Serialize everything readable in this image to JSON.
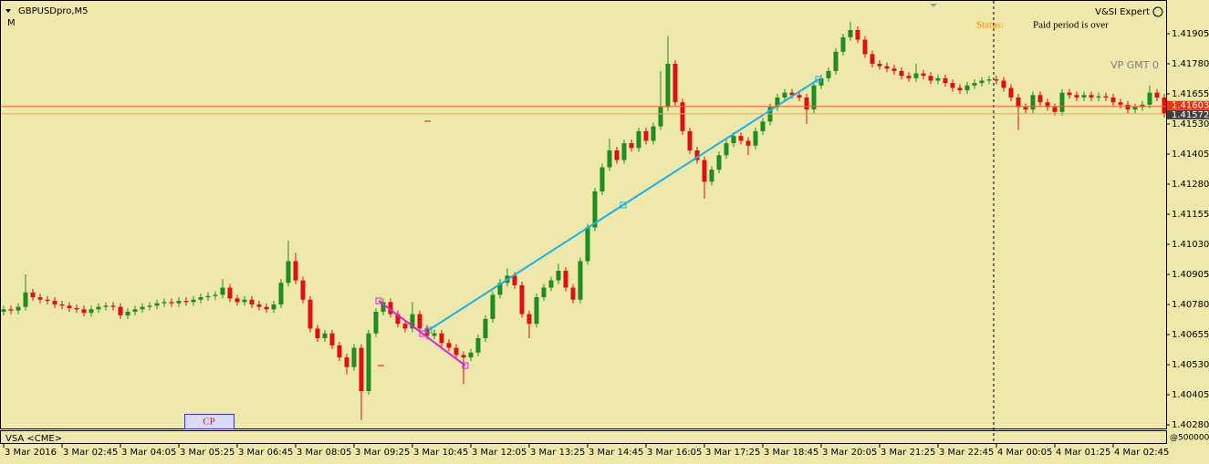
{
  "chart_data": {
    "type": "candlestick",
    "title": "GBPUSDpro,M5",
    "subtitle": "M",
    "expert_name": "V&SI Expert",
    "status_label": "Status:",
    "status_text": "Paid period is over",
    "annotation": "VP GMT 0",
    "indicator": "VSA <CME>",
    "indicator_scale": "@500000",
    "button": "CP",
    "up_color": "#1e8c1e",
    "down_color": "#e01010",
    "ask": 1.41603,
    "bid": 1.41572,
    "ylim": [
      1.40265,
      1.42045
    ],
    "yticks": [
      1.41905,
      {
        "value": 1.4178,
        "label": "1.41780"
      },
      1.41655,
      {
        "value": 1.4153,
        "label": "1.41530"
      },
      1.41405,
      {
        "value": 1.4128,
        "label": "1.41280"
      },
      1.41155,
      {
        "value": 1.4103,
        "label": "1.41030"
      },
      1.40905,
      {
        "value": 1.4078,
        "label": "1.40780"
      },
      1.40655,
      {
        "value": 1.4053,
        "label": "1.40530"
      },
      1.40405,
      {
        "value": 1.4028,
        "label": "1.40280"
      }
    ],
    "x_labels": [
      "3 Mar 2016",
      "3 Mar 02:45",
      "3 Mar 04:05",
      "3 Mar 05:25",
      "3 Mar 06:45",
      "3 Mar 08:05",
      "3 Mar 09:25",
      "3 Mar 10:45",
      "3 Mar 12:05",
      "3 Mar 13:25",
      "3 Mar 14:45",
      "3 Mar 16:05",
      "3 Mar 17:25",
      "3 Mar 18:45",
      "3 Mar 20:05",
      "3 Mar 21:25",
      "3 Mar 22:45",
      "4 Mar 00:05",
      "4 Mar 01:25",
      "4 Mar 02:45"
    ],
    "open": [
      1.4075,
      1.4076,
      1.40755,
      1.4077,
      1.4083,
      1.4081,
      1.408,
      1.40795,
      1.4078,
      1.40775,
      1.40765,
      1.4076,
      1.40745,
      1.4076,
      1.4077,
      1.40775,
      1.4077,
      1.40735,
      1.4075,
      1.4076,
      1.4077,
      1.40775,
      1.40785,
      1.4079,
      1.40785,
      1.40795,
      1.4079,
      1.408,
      1.4081,
      1.40815,
      1.4082,
      1.4085,
      1.40805,
      1.4079,
      1.408,
      1.4078,
      1.4077,
      1.4076,
      1.4078,
      1.4087,
      1.4096,
      1.4088,
      1.408,
      1.4068,
      1.4064,
      1.4066,
      1.4061,
      1.4056,
      1.4052,
      1.406,
      1.4042,
      1.4066,
      1.4075,
      1.4079,
      1.4074,
      1.407,
      1.4068,
      1.4074,
      1.4068,
      1.4065,
      1.4066,
      1.4062,
      1.406,
      1.4057,
      1.4056,
      1.4058,
      1.4064,
      1.4072,
      1.4082,
      1.4087,
      1.409,
      1.4086,
      1.4074,
      1.407,
      1.4081,
      1.4085,
      1.4088,
      1.4092,
      1.4085,
      1.408,
      1.4096,
      1.411,
      1.4125,
      1.4135,
      1.4142,
      1.4138,
      1.4145,
      1.4143,
      1.415,
      1.4146,
      1.4152,
      1.416,
      1.4178,
      1.4162,
      1.415,
      1.4142,
      1.4138,
      1.4129,
      1.4134,
      1.414,
      1.4145,
      1.4148,
      1.4146,
      1.4144,
      1.415,
      1.4154,
      1.416,
      1.4164,
      1.4166,
      1.4165,
      1.4164,
      1.4159,
      1.4169,
      1.4172,
      1.4175,
      1.4183,
      1.4189,
      1.4192,
      1.4188,
      1.4182,
      1.4178,
      1.4177,
      1.4176,
      1.4175,
      1.4173,
      1.4172,
      1.4174,
      1.4173,
      1.4171,
      1.4172,
      1.417,
      1.4168,
      1.4167,
      1.4169,
      1.417,
      1.4171,
      1.41715,
      1.4171,
      1.4168,
      1.4164,
      1.416,
      1.4159,
      1.4165,
      1.4162,
      1.416,
      1.4158,
      1.4166,
      1.4165,
      1.4164,
      1.4165,
      1.4164,
      1.41645,
      1.4164,
      1.4162,
      1.4161,
      1.4159,
      1.416,
      1.4161,
      1.4166,
      1.4164
    ],
    "high": [
      1.40775,
      1.40775,
      1.40785,
      1.40905,
      1.40845,
      1.40825,
      1.40815,
      1.4081,
      1.40795,
      1.4079,
      1.4078,
      1.40775,
      1.40775,
      1.40785,
      1.4079,
      1.4079,
      1.40785,
      1.40765,
      1.40775,
      1.40785,
      1.4079,
      1.408,
      1.40805,
      1.40805,
      1.4081,
      1.4081,
      1.40815,
      1.40825,
      1.4083,
      1.40835,
      1.40885,
      1.40865,
      1.4082,
      1.40815,
      1.40815,
      1.40795,
      1.40785,
      1.40795,
      1.40885,
      1.41045,
      1.40995,
      1.40895,
      1.40815,
      1.40695,
      1.40675,
      1.40675,
      1.40625,
      1.40575,
      1.40615,
      1.40615,
      1.40675,
      1.40765,
      1.40805,
      1.40805,
      1.40755,
      1.40715,
      1.4079,
      1.40755,
      1.40695,
      1.40675,
      1.40675,
      1.40635,
      1.40615,
      1.40585,
      1.40595,
      1.40655,
      1.40735,
      1.40835,
      1.40885,
      1.4093,
      1.40915,
      1.40875,
      1.40755,
      1.40825,
      1.40865,
      1.40895,
      1.4095,
      1.40935,
      1.40865,
      1.40975,
      1.41115,
      1.41265,
      1.41365,
      1.4147,
      1.41435,
      1.41465,
      1.41465,
      1.41515,
      1.41515,
      1.41535,
      1.4175,
      1.41895,
      1.41795,
      1.41635,
      1.41515,
      1.41435,
      1.41395,
      1.41355,
      1.41415,
      1.41465,
      1.41495,
      1.41495,
      1.41475,
      1.41515,
      1.41555,
      1.41615,
      1.41655,
      1.41675,
      1.41675,
      1.41665,
      1.41655,
      1.41705,
      1.41735,
      1.41765,
      1.41845,
      1.41905,
      1.41955,
      1.41935,
      1.41895,
      1.41835,
      1.41795,
      1.41785,
      1.41775,
      1.41765,
      1.41745,
      1.4178,
      1.41755,
      1.41745,
      1.41735,
      1.41735,
      1.41715,
      1.41695,
      1.41705,
      1.41715,
      1.41725,
      1.4173,
      1.4173,
      1.41725,
      1.41695,
      1.41655,
      1.41615,
      1.41665,
      1.41665,
      1.41635,
      1.41615,
      1.41675,
      1.41675,
      1.41665,
      1.41665,
      1.41665,
      1.4166,
      1.4166,
      1.41655,
      1.41635,
      1.41625,
      1.41615,
      1.41625,
      1.4169,
      1.41675,
      1.41655
    ],
    "low": [
      1.40735,
      1.4074,
      1.4074,
      1.40755,
      1.40795,
      1.40785,
      1.4078,
      1.40765,
      1.4076,
      1.4075,
      1.40745,
      1.4073,
      1.4073,
      1.40745,
      1.40755,
      1.40755,
      1.4072,
      1.4072,
      1.40735,
      1.40745,
      1.40755,
      1.4076,
      1.4077,
      1.4077,
      1.4077,
      1.40775,
      1.40775,
      1.40785,
      1.40795,
      1.408,
      1.40805,
      1.4079,
      1.40775,
      1.40775,
      1.40765,
      1.40755,
      1.40745,
      1.40745,
      1.40765,
      1.40855,
      1.40865,
      1.40785,
      1.40665,
      1.40625,
      1.40625,
      1.40595,
      1.40545,
      1.4049,
      1.40505,
      1.403,
      1.40405,
      1.40645,
      1.40735,
      1.40725,
      1.40685,
      1.40665,
      1.40665,
      1.40665,
      1.40635,
      1.40635,
      1.40605,
      1.40585,
      1.40555,
      1.4045,
      1.40545,
      1.40565,
      1.40625,
      1.40705,
      1.40805,
      1.40855,
      1.40845,
      1.40725,
      1.4064,
      1.40685,
      1.40795,
      1.40835,
      1.40865,
      1.40835,
      1.40785,
      1.40785,
      1.40945,
      1.41085,
      1.41235,
      1.41335,
      1.41365,
      1.41365,
      1.41415,
      1.41415,
      1.41445,
      1.41445,
      1.41505,
      1.41585,
      1.41605,
      1.41485,
      1.41405,
      1.41365,
      1.4122,
      1.41275,
      1.41325,
      1.41385,
      1.41435,
      1.41445,
      1.414,
      1.41425,
      1.41485,
      1.41525,
      1.41585,
      1.41625,
      1.41635,
      1.41625,
      1.4153,
      1.41575,
      1.41675,
      1.41705,
      1.41735,
      1.41815,
      1.41875,
      1.41865,
      1.41805,
      1.41765,
      1.41755,
      1.41745,
      1.41735,
      1.41715,
      1.41705,
      1.41705,
      1.41715,
      1.41695,
      1.41695,
      1.41685,
      1.41665,
      1.41655,
      1.41655,
      1.41675,
      1.41685,
      1.41695,
      1.41695,
      1.41665,
      1.41625,
      1.41505,
      1.41575,
      1.41575,
      1.41605,
      1.41585,
      1.41565,
      1.41565,
      1.41635,
      1.41625,
      1.41625,
      1.41625,
      1.41625,
      1.41625,
      1.41605,
      1.41595,
      1.41575,
      1.41575,
      1.41585,
      1.41595,
      1.41625,
      1.41557
    ],
    "close": [
      1.4076,
      1.40755,
      1.4077,
      1.4083,
      1.4081,
      1.408,
      1.40795,
      1.4078,
      1.40775,
      1.40765,
      1.4076,
      1.40745,
      1.4076,
      1.4077,
      1.40775,
      1.4077,
      1.40735,
      1.4075,
      1.4076,
      1.4077,
      1.40775,
      1.40785,
      1.4079,
      1.40785,
      1.40795,
      1.4079,
      1.408,
      1.4081,
      1.40815,
      1.4082,
      1.4085,
      1.40805,
      1.4079,
      1.408,
      1.4078,
      1.4077,
      1.4076,
      1.4078,
      1.4087,
      1.4096,
      1.4088,
      1.408,
      1.4068,
      1.4064,
      1.4066,
      1.4061,
      1.4056,
      1.4052,
      1.406,
      1.4042,
      1.4066,
      1.4075,
      1.4079,
      1.4074,
      1.407,
      1.4068,
      1.4074,
      1.4068,
      1.4065,
      1.4066,
      1.4062,
      1.406,
      1.4057,
      1.4056,
      1.4058,
      1.4064,
      1.4072,
      1.4082,
      1.4087,
      1.409,
      1.4086,
      1.4074,
      1.407,
      1.4081,
      1.4085,
      1.4088,
      1.4092,
      1.4085,
      1.408,
      1.4096,
      1.411,
      1.4125,
      1.4135,
      1.4142,
      1.4138,
      1.4145,
      1.4143,
      1.415,
      1.4146,
      1.4152,
      1.416,
      1.4178,
      1.4162,
      1.415,
      1.4142,
      1.4138,
      1.4129,
      1.4134,
      1.414,
      1.4145,
      1.4148,
      1.4146,
      1.4144,
      1.415,
      1.4154,
      1.416,
      1.4164,
      1.4166,
      1.4165,
      1.4164,
      1.4159,
      1.4169,
      1.4172,
      1.4175,
      1.4183,
      1.4189,
      1.4192,
      1.4188,
      1.4182,
      1.4178,
      1.4177,
      1.4176,
      1.4175,
      1.4173,
      1.4172,
      1.4174,
      1.4173,
      1.4171,
      1.4172,
      1.417,
      1.4168,
      1.4167,
      1.4169,
      1.417,
      1.4171,
      1.41715,
      1.4171,
      1.4168,
      1.4164,
      1.416,
      1.4159,
      1.4165,
      1.4162,
      1.416,
      1.4158,
      1.4166,
      1.4165,
      1.4164,
      1.4165,
      1.4164,
      1.41645,
      1.4164,
      1.4162,
      1.4161,
      1.4159,
      1.416,
      1.4161,
      1.4166,
      1.4164,
      1.41572
    ]
  }
}
